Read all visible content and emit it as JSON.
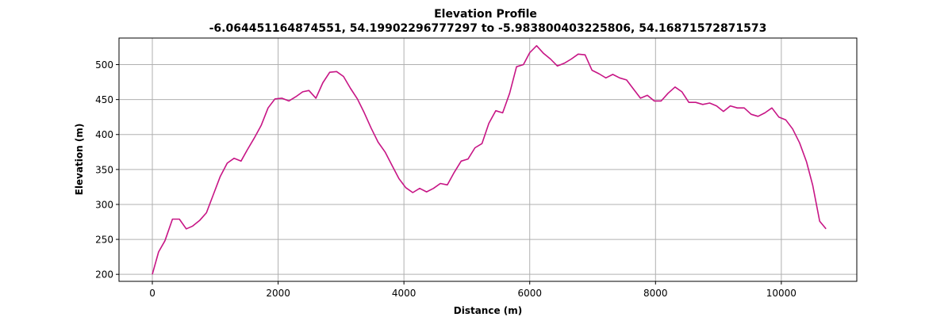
{
  "chart_data": {
    "type": "line",
    "title": "Elevation Profile",
    "subtitle": "-6.064451164874551, 54.19902296777297 to -5.983800403225806, 54.16871572871573",
    "xlabel": "Distance (m)",
    "ylabel": "Elevation (m)",
    "xlim": [
      -530,
      11200
    ],
    "ylim": [
      190,
      538
    ],
    "x_ticks": [
      0,
      2000,
      4000,
      6000,
      8000,
      10000
    ],
    "y_ticks": [
      200,
      250,
      300,
      350,
      400,
      450,
      500
    ],
    "grid": true,
    "line_color": "#c71585",
    "series": [
      {
        "x": [
          0,
          100,
          200,
          320,
          430,
          540,
          640,
          750,
          860,
          970,
          1080,
          1190,
          1300,
          1410,
          1510,
          1620,
          1730,
          1840,
          1950,
          2060,
          2170,
          2280,
          2390,
          2490,
          2600,
          2710,
          2820,
          2930,
          3040,
          3150,
          3260,
          3370,
          3480,
          3590,
          3700,
          3810,
          3920,
          4030,
          4140,
          4250,
          4360,
          4470,
          4580,
          4690,
          4800,
          4910,
          5020,
          5130,
          5240,
          5350,
          5460,
          5570,
          5680,
          5790,
          5900,
          6000,
          6110,
          6220,
          6330,
          6440,
          6550,
          6660,
          6770,
          6880,
          6990,
          7100,
          7210,
          7320,
          7430,
          7540,
          7650,
          7760,
          7870,
          7980,
          8090,
          8200,
          8310,
          8420,
          8530,
          8640,
          8750,
          8860,
          8970,
          9080,
          9190,
          9300,
          9410,
          9520,
          9630,
          9740,
          9850,
          9960,
          10070,
          10180,
          10290,
          10400,
          10500,
          10610,
          10710
        ],
        "y": [
          200,
          232,
          248,
          279,
          279,
          265,
          269,
          277,
          288,
          314,
          340,
          359,
          366,
          362,
          378,
          395,
          413,
          438,
          451,
          452,
          448,
          454,
          461,
          463,
          452,
          474,
          489,
          490,
          483,
          466,
          451,
          431,
          409,
          389,
          375,
          356,
          337,
          324,
          317,
          323,
          318,
          323,
          330,
          328,
          346,
          362,
          365,
          381,
          387,
          416,
          434,
          431,
          459,
          497,
          500,
          517,
          527,
          516,
          508,
          498,
          502,
          508,
          515,
          514,
          492,
          487,
          481,
          486,
          481,
          478,
          465,
          452,
          456,
          448,
          448,
          459,
          468,
          461,
          446,
          446,
          443,
          445,
          441,
          433,
          441,
          438,
          438,
          429,
          426,
          431,
          438,
          425,
          421,
          408,
          388,
          361,
          327,
          276,
          265
        ]
      }
    ]
  }
}
